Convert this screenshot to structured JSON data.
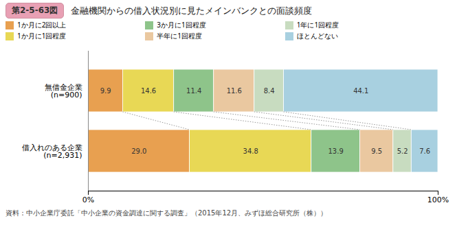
{
  "chart_data": {
    "type": "bar",
    "orientation": "horizontal",
    "stacked": true,
    "data_labels": true,
    "title": "金融機関からの借入状況別に見たメインバンクとの面談頻度",
    "title_label": "第2-5-63図",
    "source": "資料：中小企業庁委託「中小企業の資金調達に関する調査」（2015年12月、みずほ総合研究所（株））",
    "categories": [
      "無借金企業\n(n=900)",
      "借入れのある企業\n(n=2,931)"
    ],
    "series": [
      {
        "name": "1か月に2回以上",
        "color": "#E8A050",
        "values": [
          9.9,
          29.0
        ],
        "value_labels": [
          "9.9",
          "29.0"
        ]
      },
      {
        "name": "1か月に1回程度",
        "color": "#E8D855",
        "values": [
          14.6,
          34.8
        ],
        "value_labels": [
          "14.6",
          "34.8"
        ]
      },
      {
        "name": "3か月に1回程度",
        "color": "#8EC48A",
        "values": [
          11.4,
          13.9
        ],
        "value_labels": [
          "11.4",
          "13.9"
        ]
      },
      {
        "name": "半年に1回程度",
        "color": "#EAC8A0",
        "values": [
          11.6,
          9.5
        ],
        "value_labels": [
          "11.6",
          "9.5"
        ]
      },
      {
        "name": "1年に1回程度",
        "color": "#C8DCC0",
        "values": [
          8.4,
          5.2
        ],
        "value_labels": [
          "8.4",
          "5.2"
        ]
      },
      {
        "name": "ほとんどない",
        "color": "#A8D0E0",
        "values": [
          44.1,
          7.6
        ],
        "value_labels": [
          "44.1",
          "7.6"
        ]
      }
    ],
    "xlim": [
      0,
      100
    ],
    "xticks": [
      {
        "value": 0,
        "label": "0%"
      },
      {
        "value": 100,
        "label": "100%"
      }
    ],
    "grid": false
  }
}
